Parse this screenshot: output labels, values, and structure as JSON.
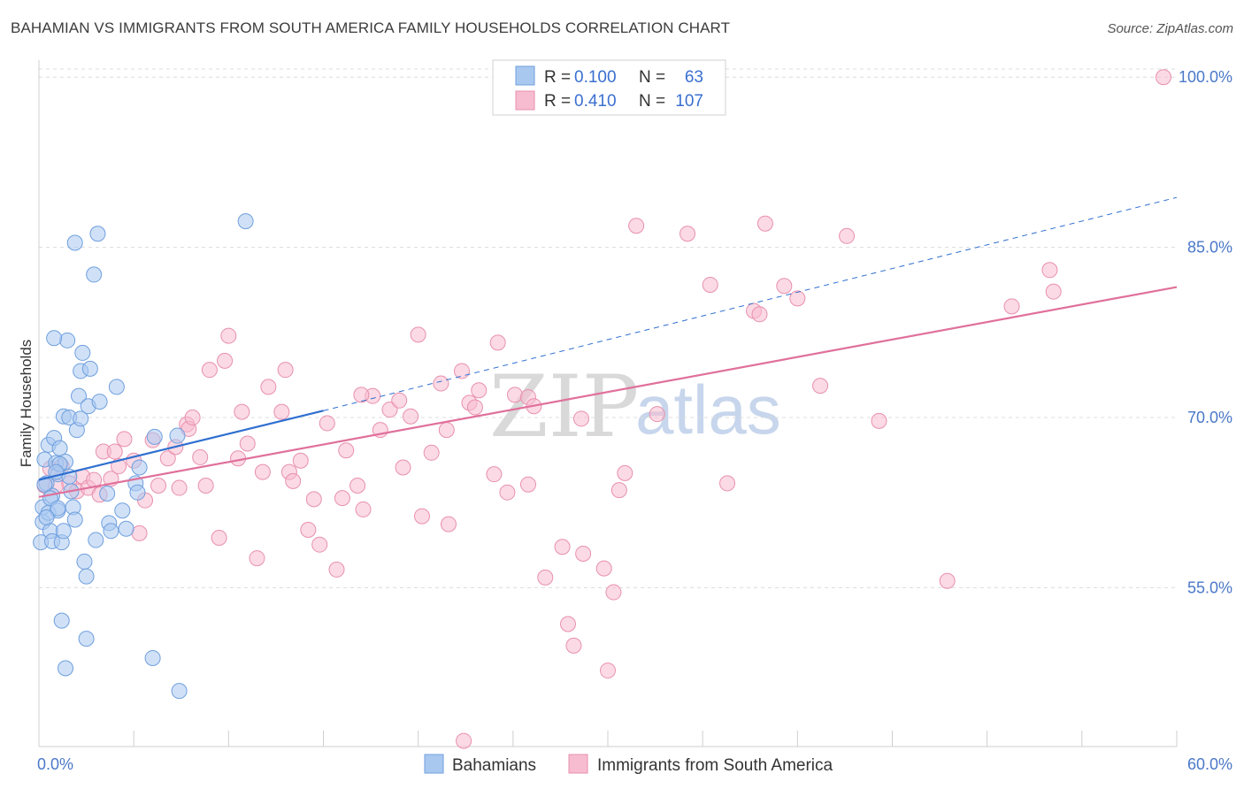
{
  "title": "BAHAMIAN VS IMMIGRANTS FROM SOUTH AMERICA FAMILY HOUSEHOLDS CORRELATION CHART",
  "source": "Source: ZipAtlas.com",
  "watermark": {
    "part1": "ZIP",
    "part2": "atlas"
  },
  "colors": {
    "blue": "#a9c8f0",
    "blue_edge": "#6f9fde",
    "blue_line": "#2f6fd0",
    "pink": "#f7bcd0",
    "pink_edge": "#e890ad",
    "pink_line": "#e0709a",
    "grid": "#dcdcdc",
    "axis_label": "#4a78c8"
  },
  "legend": {
    "rows": [
      {
        "r_label": "R =",
        "r_value": "0.100",
        "n_label": "N =",
        "n_value": "63"
      },
      {
        "r_label": "R =",
        "r_value": "0.410",
        "n_label": "N =",
        "n_value": "107"
      }
    ]
  },
  "bottom_legend": [
    "Bahamians",
    "Immigrants from South America"
  ],
  "chart_data": {
    "type": "scatter",
    "title": "BAHAMIAN VS IMMIGRANTS FROM SOUTH AMERICA FAMILY HOUSEHOLDS CORRELATION CHART",
    "xlabel": "",
    "ylabel": "Family Households",
    "xlim": [
      0,
      60
    ],
    "ylim": [
      41,
      101.5
    ],
    "x_tick_labels": [
      "0.0%",
      "60.0%"
    ],
    "y_ticks": [
      55,
      70,
      85,
      100
    ],
    "y_tick_labels": [
      "55.0%",
      "70.0%",
      "85.0%",
      "100.0%"
    ],
    "grid": true,
    "legend_position": "top-center",
    "series": [
      {
        "name": "Bahamians",
        "color": "#a9c8f0",
        "trend": {
          "x": [
            0,
            15
          ],
          "y": [
            64.5,
            70.6
          ],
          "dashed_to": [
            60,
            89.4
          ]
        },
        "points": [
          [
            0.1,
            59.0
          ],
          [
            0.2,
            62.1
          ],
          [
            0.2,
            60.8
          ],
          [
            0.3,
            66.3
          ],
          [
            0.4,
            64.2
          ],
          [
            0.5,
            61.6
          ],
          [
            0.5,
            67.6
          ],
          [
            0.6,
            60.0
          ],
          [
            0.7,
            59.1
          ],
          [
            0.7,
            63.1
          ],
          [
            0.8,
            68.2
          ],
          [
            0.9,
            66.0
          ],
          [
            1.0,
            65.0
          ],
          [
            1.0,
            61.8
          ],
          [
            1.1,
            67.3
          ],
          [
            1.2,
            59.0
          ],
          [
            1.3,
            60.0
          ],
          [
            1.3,
            70.1
          ],
          [
            1.4,
            66.1
          ],
          [
            1.5,
            76.8
          ],
          [
            1.6,
            70.0
          ],
          [
            1.7,
            63.5
          ],
          [
            1.8,
            62.1
          ],
          [
            1.9,
            61.0
          ],
          [
            2.0,
            68.9
          ],
          [
            2.1,
            71.9
          ],
          [
            2.2,
            69.9
          ],
          [
            2.2,
            74.1
          ],
          [
            2.3,
            75.7
          ],
          [
            2.4,
            57.3
          ],
          [
            2.5,
            56.0
          ],
          [
            2.6,
            71.0
          ],
          [
            2.7,
            74.3
          ],
          [
            2.9,
            82.6
          ],
          [
            3.0,
            59.2
          ],
          [
            3.2,
            71.4
          ],
          [
            3.6,
            63.3
          ],
          [
            3.7,
            60.7
          ],
          [
            3.8,
            60.0
          ],
          [
            4.1,
            72.7
          ],
          [
            4.4,
            61.8
          ],
          [
            4.6,
            60.2
          ],
          [
            5.1,
            64.2
          ],
          [
            5.2,
            63.4
          ],
          [
            5.3,
            65.6
          ],
          [
            6.0,
            48.8
          ],
          [
            6.1,
            68.3
          ],
          [
            7.3,
            68.4
          ],
          [
            7.4,
            45.9
          ],
          [
            10.9,
            87.3
          ],
          [
            1.9,
            85.4
          ],
          [
            3.1,
            86.2
          ],
          [
            1.2,
            52.1
          ],
          [
            2.5,
            50.5
          ],
          [
            1.4,
            47.9
          ],
          [
            0.8,
            77.0
          ],
          [
            0.3,
            64.1
          ],
          [
            0.6,
            62.9
          ],
          [
            1.0,
            62.0
          ],
          [
            1.6,
            64.8
          ],
          [
            1.1,
            65.9
          ],
          [
            0.4,
            61.2
          ],
          [
            0.9,
            65.2
          ]
        ]
      },
      {
        "name": "Immigrants from South America",
        "color": "#f7bcd0",
        "trend": {
          "x": [
            0,
            60
          ],
          "y": [
            63.0,
            81.5
          ]
        },
        "points": [
          [
            0.3,
            64.0
          ],
          [
            0.6,
            65.5
          ],
          [
            0.9,
            64.0
          ],
          [
            1.2,
            65.7
          ],
          [
            1.6,
            64.2
          ],
          [
            2.0,
            63.5
          ],
          [
            2.3,
            64.8
          ],
          [
            2.6,
            63.8
          ],
          [
            2.9,
            64.5
          ],
          [
            3.2,
            63.2
          ],
          [
            3.4,
            67.0
          ],
          [
            3.8,
            64.6
          ],
          [
            4.0,
            67.0
          ],
          [
            4.2,
            65.7
          ],
          [
            4.5,
            68.1
          ],
          [
            5.0,
            66.2
          ],
          [
            5.3,
            59.8
          ],
          [
            5.6,
            62.7
          ],
          [
            6.3,
            64.0
          ],
          [
            6.0,
            68.0
          ],
          [
            6.8,
            66.4
          ],
          [
            7.2,
            67.4
          ],
          [
            7.4,
            63.8
          ],
          [
            7.8,
            69.4
          ],
          [
            7.9,
            69.0
          ],
          [
            8.1,
            70.0
          ],
          [
            8.5,
            66.5
          ],
          [
            8.8,
            64.0
          ],
          [
            9.0,
            74.2
          ],
          [
            9.5,
            59.4
          ],
          [
            9.8,
            75.0
          ],
          [
            10.0,
            77.2
          ],
          [
            10.5,
            66.4
          ],
          [
            10.7,
            70.5
          ],
          [
            11.0,
            67.7
          ],
          [
            11.5,
            57.6
          ],
          [
            11.8,
            65.2
          ],
          [
            12.1,
            72.7
          ],
          [
            13.0,
            74.2
          ],
          [
            13.2,
            65.2
          ],
          [
            13.4,
            64.4
          ],
          [
            13.8,
            66.2
          ],
          [
            14.2,
            60.1
          ],
          [
            14.5,
            62.8
          ],
          [
            14.8,
            58.8
          ],
          [
            15.2,
            69.5
          ],
          [
            15.7,
            56.6
          ],
          [
            16.0,
            62.9
          ],
          [
            16.2,
            67.1
          ],
          [
            16.8,
            64.0
          ],
          [
            17.1,
            61.9
          ],
          [
            17.6,
            71.9
          ],
          [
            18.0,
            68.9
          ],
          [
            18.5,
            70.7
          ],
          [
            19.0,
            71.5
          ],
          [
            19.2,
            65.6
          ],
          [
            19.6,
            70.1
          ],
          [
            20.0,
            77.3
          ],
          [
            20.2,
            61.3
          ],
          [
            20.7,
            66.9
          ],
          [
            21.2,
            73.0
          ],
          [
            21.5,
            68.9
          ],
          [
            21.6,
            60.6
          ],
          [
            22.3,
            74.1
          ],
          [
            22.7,
            71.3
          ],
          [
            23.0,
            70.9
          ],
          [
            23.2,
            72.4
          ],
          [
            24.0,
            65.0
          ],
          [
            24.2,
            76.6
          ],
          [
            24.7,
            63.4
          ],
          [
            25.1,
            72.0
          ],
          [
            25.8,
            71.8
          ],
          [
            25.8,
            64.1
          ],
          [
            26.1,
            71.0
          ],
          [
            26.7,
            55.9
          ],
          [
            27.6,
            58.6
          ],
          [
            27.9,
            51.8
          ],
          [
            28.2,
            49.9
          ],
          [
            28.6,
            69.9
          ],
          [
            29.8,
            56.7
          ],
          [
            30.0,
            47.7
          ],
          [
            30.3,
            54.6
          ],
          [
            30.6,
            63.6
          ],
          [
            30.9,
            65.1
          ],
          [
            31.5,
            86.9
          ],
          [
            32.6,
            70.3
          ],
          [
            34.2,
            86.2
          ],
          [
            35.4,
            81.7
          ],
          [
            36.3,
            64.2
          ],
          [
            37.7,
            79.4
          ],
          [
            38.0,
            79.1
          ],
          [
            38.3,
            87.1
          ],
          [
            39.3,
            81.6
          ],
          [
            40.0,
            80.5
          ],
          [
            41.2,
            72.8
          ],
          [
            42.6,
            86.0
          ],
          [
            44.3,
            69.7
          ],
          [
            47.9,
            55.6
          ],
          [
            51.3,
            79.8
          ],
          [
            53.3,
            83.0
          ],
          [
            53.5,
            81.1
          ],
          [
            59.3,
            100.0
          ],
          [
            29.0,
            100.0
          ],
          [
            28.7,
            58.0
          ],
          [
            22.4,
            41.5
          ],
          [
            12.8,
            70.5
          ],
          [
            17.0,
            72.0
          ]
        ]
      }
    ]
  }
}
